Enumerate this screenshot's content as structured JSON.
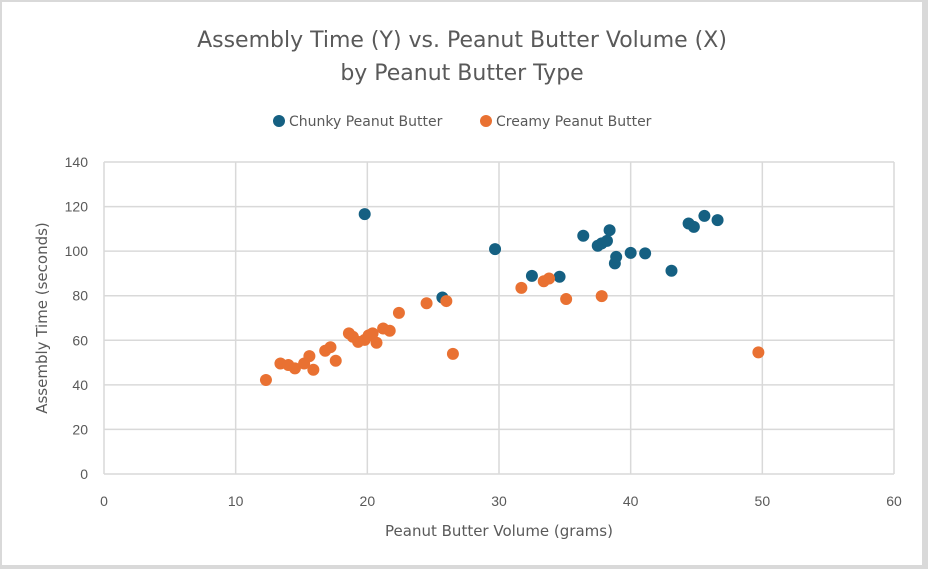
{
  "chart_data": {
    "type": "scatter",
    "title": [
      "Assembly Time (Y) vs. Peanut Butter Volume (X)",
      "by Peanut Butter Type"
    ],
    "xlabel": "Peanut Butter Volume (grams)",
    "ylabel": "Assembly Time (seconds)",
    "xlim": [
      0,
      60
    ],
    "ylim": [
      0,
      140
    ],
    "xticks": [
      0,
      10,
      20,
      30,
      40,
      50,
      60
    ],
    "yticks": [
      0,
      20,
      40,
      60,
      80,
      100,
      120,
      140
    ],
    "grid": true,
    "legend_position": "top",
    "series": [
      {
        "name": "Chunky Peanut Butter",
        "color": "#156082",
        "points": [
          [
            19.8,
            116.6
          ],
          [
            25.7,
            79.2
          ],
          [
            29.7,
            100.9
          ],
          [
            32.5,
            88.9
          ],
          [
            34.6,
            88.5
          ],
          [
            36.4,
            106.9
          ],
          [
            37.5,
            102.4
          ],
          [
            37.8,
            103.5
          ],
          [
            38.2,
            104.6
          ],
          [
            38.4,
            109.4
          ],
          [
            38.8,
            94.5
          ],
          [
            38.9,
            97.4
          ],
          [
            40.0,
            99.2
          ],
          [
            41.1,
            99.0
          ],
          [
            43.1,
            91.2
          ],
          [
            44.4,
            112.4
          ],
          [
            44.8,
            110.9
          ],
          [
            45.6,
            115.8
          ],
          [
            46.6,
            113.9
          ]
        ]
      },
      {
        "name": "Creamy Peanut Butter",
        "color": "#E97132",
        "points": [
          [
            12.3,
            42.2
          ],
          [
            13.4,
            49.6
          ],
          [
            14.0,
            48.9
          ],
          [
            14.5,
            47.4
          ],
          [
            15.2,
            49.6
          ],
          [
            15.6,
            52.9
          ],
          [
            15.9,
            46.8
          ],
          [
            16.8,
            55.3
          ],
          [
            17.2,
            56.9
          ],
          [
            17.6,
            50.8
          ],
          [
            18.6,
            63.1
          ],
          [
            18.9,
            61.6
          ],
          [
            19.3,
            59.3
          ],
          [
            19.8,
            60.2
          ],
          [
            20.1,
            62.2
          ],
          [
            20.4,
            63.1
          ],
          [
            20.7,
            58.9
          ],
          [
            21.2,
            65.3
          ],
          [
            21.7,
            64.3
          ],
          [
            22.4,
            72.3
          ],
          [
            24.5,
            76.6
          ],
          [
            26.0,
            77.6
          ],
          [
            26.5,
            53.9
          ],
          [
            31.7,
            83.5
          ],
          [
            33.4,
            86.5
          ],
          [
            33.8,
            87.7
          ],
          [
            35.1,
            78.5
          ],
          [
            37.8,
            79.8
          ],
          [
            49.7,
            54.6
          ]
        ]
      }
    ]
  }
}
